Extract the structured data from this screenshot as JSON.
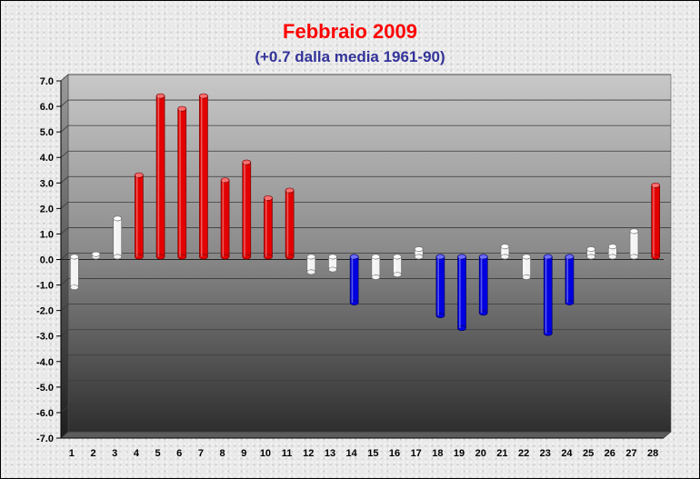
{
  "chart_data": {
    "type": "bar",
    "title": "Febbraio 2009",
    "subtitle": "(+0.7 dalla media 1961-90)",
    "xlabel": "",
    "ylabel": "",
    "categories": [
      "1",
      "2",
      "3",
      "4",
      "5",
      "6",
      "7",
      "8",
      "9",
      "10",
      "11",
      "12",
      "13",
      "14",
      "15",
      "16",
      "17",
      "18",
      "19",
      "20",
      "21",
      "22",
      "23",
      "24",
      "25",
      "26",
      "27",
      "28"
    ],
    "values": [
      -1.2,
      0.1,
      1.5,
      3.2,
      6.3,
      5.8,
      6.3,
      3.0,
      3.7,
      2.3,
      2.6,
      -0.6,
      -0.5,
      -1.8,
      -0.8,
      -0.7,
      0.3,
      -2.3,
      -2.8,
      -2.2,
      0.4,
      -0.8,
      -3.0,
      -1.8,
      0.3,
      0.4,
      1.0,
      2.8
    ],
    "bar_colors": [
      "#ffffff",
      "#ffffff",
      "#ffffff",
      "#ff0000",
      "#ff0000",
      "#ff0000",
      "#ff0000",
      "#ff0000",
      "#ff0000",
      "#ff0000",
      "#ff0000",
      "#ffffff",
      "#ffffff",
      "#0000ff",
      "#ffffff",
      "#ffffff",
      "#ffffff",
      "#0000ff",
      "#0000ff",
      "#0000ff",
      "#ffffff",
      "#ffffff",
      "#0000ff",
      "#0000ff",
      "#ffffff",
      "#ffffff",
      "#ffffff",
      "#ff0000"
    ],
    "ylim": [
      -7.0,
      7.0
    ],
    "yticks": [
      "7.0",
      "6.0",
      "5.0",
      "4.0",
      "3.0",
      "2.0",
      "1.0",
      "0.0",
      "-1.0",
      "-2.0",
      "-3.0",
      "-4.0",
      "-5.0",
      "-6.0",
      "-7.0"
    ],
    "grid": true,
    "legend": "none"
  }
}
